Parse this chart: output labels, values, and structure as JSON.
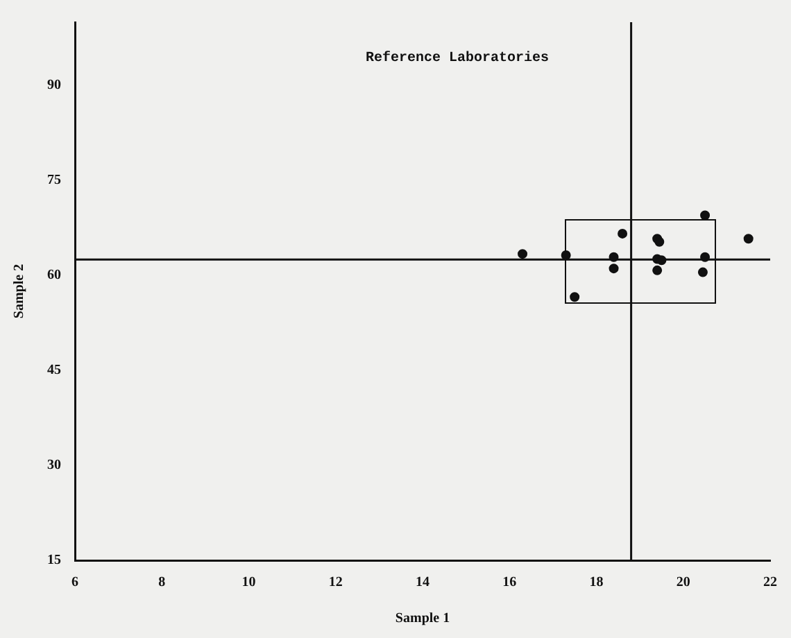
{
  "chart_data": {
    "type": "scatter",
    "title": "Reference Laboratories",
    "xlabel": "Sample 1",
    "ylabel": "Sample 2",
    "xlim": [
      6,
      22
    ],
    "xticks": [
      6,
      8,
      10,
      12,
      14,
      16,
      18,
      20,
      22
    ],
    "ylim": [
      15,
      100
    ],
    "yticks": [
      15,
      30,
      45,
      60,
      75,
      90
    ],
    "grid": false,
    "legend": false,
    "marker": "circle",
    "series": [
      {
        "color": "#111111",
        "x": [
          16.3,
          17.3,
          17.5,
          18.4,
          18.4,
          18.6,
          19.4,
          19.45,
          19.4,
          19.5,
          19.4,
          20.5,
          20.5,
          20.45,
          21.5
        ],
        "values": [
          63.4,
          63.2,
          56.6,
          62.9,
          61.1,
          66.6,
          65.8,
          65.3,
          62.6,
          62.4,
          60.8,
          69.5,
          62.9,
          60.5,
          65.8
        ]
      }
    ],
    "ref_lines": [
      {
        "axis": "x",
        "value": 18.8,
        "color": "#111111"
      },
      {
        "axis": "y",
        "value": 62.5,
        "color": "#111111"
      }
    ]
  }
}
